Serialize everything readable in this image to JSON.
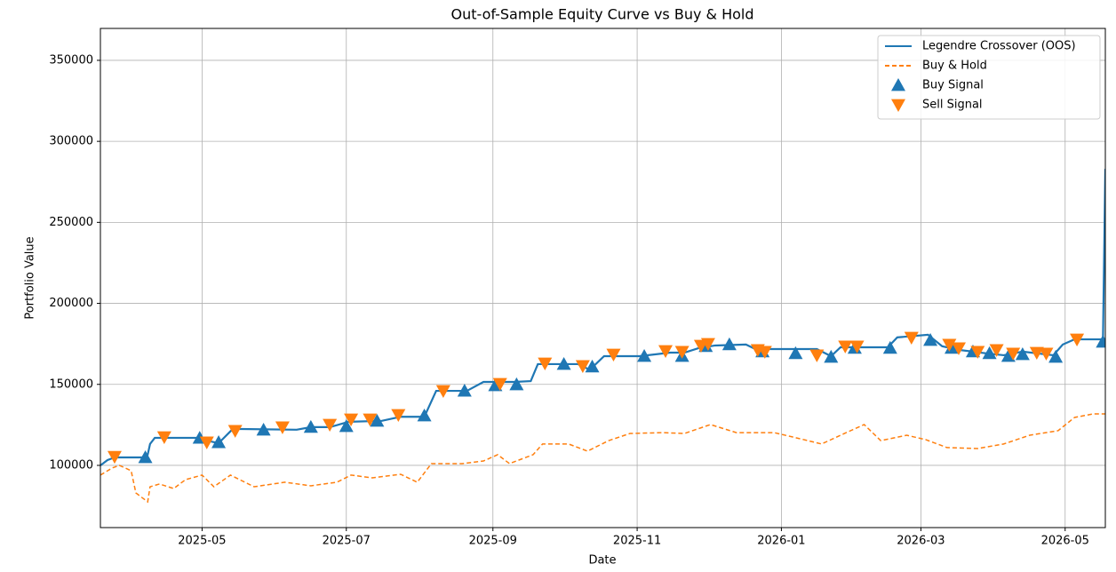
{
  "chart_data": {
    "type": "line",
    "title": "Out-of-Sample Equity Curve vs Buy & Hold",
    "x_label": "Date",
    "y_label": "Portfolio Value",
    "xlim": [
      -43,
      382
    ],
    "ylim": [
      61600,
      369700
    ],
    "xticks": [
      {
        "value": 0,
        "label": "2025-05"
      },
      {
        "value": 61,
        "label": "2025-07"
      },
      {
        "value": 123,
        "label": "2025-09"
      },
      {
        "value": 184,
        "label": "2025-11"
      },
      {
        "value": 245,
        "label": "2026-01"
      },
      {
        "value": 304,
        "label": "2026-03"
      },
      {
        "value": 365,
        "label": "2026-05"
      }
    ],
    "yticks": [
      100000,
      150000,
      200000,
      250000,
      300000,
      350000
    ],
    "grid": true,
    "legend": "upper right",
    "series": [
      {
        "name": "Legendre Crossover (OOS)",
        "kind": "line",
        "linestyle": "solid",
        "color": "#1f77b4",
        "x": [
          -43,
          -40,
          -37,
          -25,
          -23,
          -22,
          -20,
          -1,
          2,
          7,
          13,
          40,
          46,
          54,
          62,
          76,
          84,
          94,
          99,
          112,
          119,
          132,
          139,
          142,
          159,
          164,
          170,
          185,
          198,
          204,
          210,
          217,
          230,
          234,
          260,
          266,
          270,
          290,
          294,
          307,
          313,
          320,
          332,
          339,
          347,
          360,
          364,
          369,
          381,
          382
        ],
        "values": [
          100000,
          103300,
          104900,
          104900,
          106600,
          113200,
          117000,
          117000,
          115300,
          113700,
          122500,
          122000,
          123600,
          123600,
          126900,
          127500,
          130000,
          130000,
          146000,
          146000,
          151500,
          151500,
          152000,
          162500,
          162500,
          159000,
          167400,
          167400,
          169600,
          169600,
          172400,
          174000,
          174600,
          171800,
          171800,
          167400,
          172900,
          172900,
          179000,
          180600,
          173500,
          171300,
          169100,
          168000,
          170200,
          168000,
          174600,
          177800,
          177800,
          283000
        ]
      },
      {
        "name": "Buy & Hold",
        "kind": "line",
        "linestyle": "dashed",
        "color": "#ff7f0e",
        "x": [
          -43,
          -38,
          -35,
          -30,
          -28,
          -23,
          -22,
          -18,
          -12,
          -7,
          0,
          5,
          12,
          22,
          35,
          46,
          57,
          63,
          72,
          84,
          91,
          97,
          110,
          119,
          125,
          130,
          140,
          144,
          155,
          163,
          172,
          181,
          195,
          204,
          215,
          226,
          242,
          253,
          262,
          270,
          280,
          287,
          298,
          306,
          315,
          328,
          339,
          350,
          362,
          369,
          377,
          382
        ],
        "values": [
          94000,
          98400,
          100000,
          96700,
          83000,
          77500,
          86800,
          88500,
          85700,
          91200,
          94000,
          86800,
          94000,
          86800,
          89600,
          87400,
          89600,
          94000,
          92300,
          94500,
          89600,
          101100,
          101100,
          102700,
          106600,
          101100,
          106600,
          113200,
          113200,
          108800,
          115300,
          119700,
          120200,
          119700,
          125200,
          120200,
          120200,
          116400,
          113200,
          118600,
          125200,
          115300,
          118600,
          115900,
          111000,
          110400,
          113200,
          118600,
          121400,
          129600,
          131800,
          131800
        ]
      },
      {
        "name": "Buy Signal",
        "kind": "scatter",
        "marker": "^",
        "color": "#1f77b4",
        "x": [
          -24,
          -1,
          7,
          26,
          46,
          61,
          74,
          94,
          111,
          124,
          133,
          153,
          165,
          187,
          203,
          213,
          223,
          237,
          251,
          266,
          276,
          291,
          308,
          317,
          326,
          333,
          341,
          347,
          361,
          381
        ],
        "values": [
          104900,
          116900,
          114200,
          121900,
          123600,
          124100,
          127400,
          130700,
          146000,
          149300,
          149900,
          162500,
          160900,
          167400,
          167400,
          173500,
          174600,
          170200,
          169100,
          166900,
          172400,
          172400,
          177300,
          172400,
          170200,
          169100,
          167400,
          168500,
          166900,
          176200
        ]
      },
      {
        "name": "Sell Signal",
        "kind": "scatter",
        "marker": "v",
        "color": "#ff7f0e",
        "x": [
          -37,
          -16,
          2,
          14,
          34,
          54,
          63,
          71,
          83,
          102,
          126,
          145,
          161,
          174,
          196,
          203,
          211,
          214,
          235,
          238,
          260,
          272,
          277,
          300,
          316,
          320,
          328,
          336,
          343,
          353,
          357,
          370
        ],
        "values": [
          105400,
          117500,
          114300,
          121400,
          123600,
          125200,
          128500,
          128500,
          131200,
          146000,
          150400,
          163000,
          161400,
          168500,
          170700,
          170200,
          174000,
          175100,
          171300,
          170200,
          168000,
          173500,
          173500,
          178900,
          174600,
          172400,
          170200,
          171300,
          169100,
          169600,
          169100,
          177800
        ]
      }
    ]
  }
}
